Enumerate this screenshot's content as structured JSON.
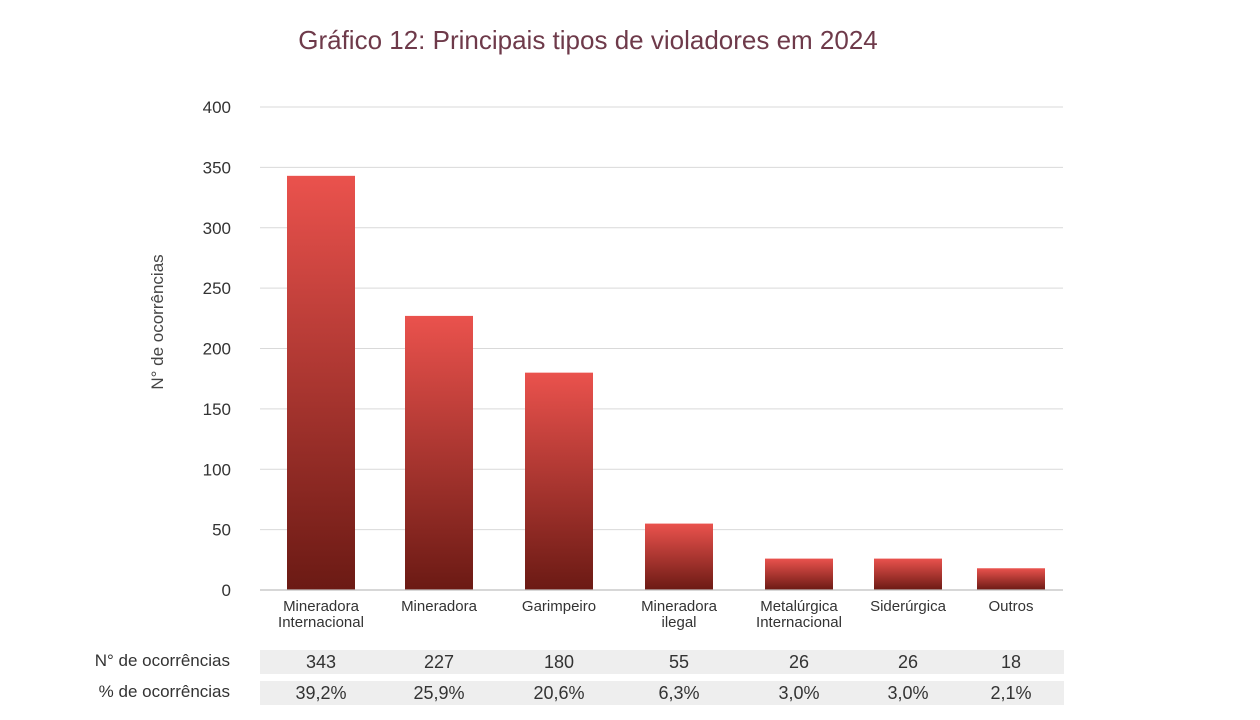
{
  "chart_data": {
    "type": "bar",
    "title": "Gráfico 12: Principais tipos de violadores em 2024",
    "xlabel": "",
    "ylabel": "N° de ocorrências",
    "ylim": [
      0,
      400
    ],
    "yticks": [
      0,
      50,
      100,
      150,
      200,
      250,
      300,
      350,
      400
    ],
    "grid": true,
    "categories": [
      [
        "Mineradora",
        "Internacional"
      ],
      [
        "Mineradora"
      ],
      [
        "Garimpeiro"
      ],
      [
        "Mineradora",
        "ilegal"
      ],
      [
        "Metalúrgica",
        "Internacional"
      ],
      [
        "Siderúrgica"
      ],
      [
        "Outros"
      ]
    ],
    "values": [
      343,
      227,
      180,
      55,
      26,
      26,
      18
    ],
    "colors": {
      "bar_top": "#ea524d",
      "bar_bottom": "#6b1a14",
      "title": "#6e3a4a",
      "grid": "#d9d9d9"
    }
  },
  "table": {
    "rows": [
      {
        "label": "N° de ocorrências",
        "values": [
          "343",
          "227",
          "180",
          "55",
          "26",
          "26",
          "18"
        ]
      },
      {
        "label": "% de ocorrências",
        "values": [
          "39,2%",
          "25,9%",
          "20,6%",
          "6,3%",
          "3,0%",
          "3,0%",
          "2,1%"
        ]
      }
    ]
  }
}
